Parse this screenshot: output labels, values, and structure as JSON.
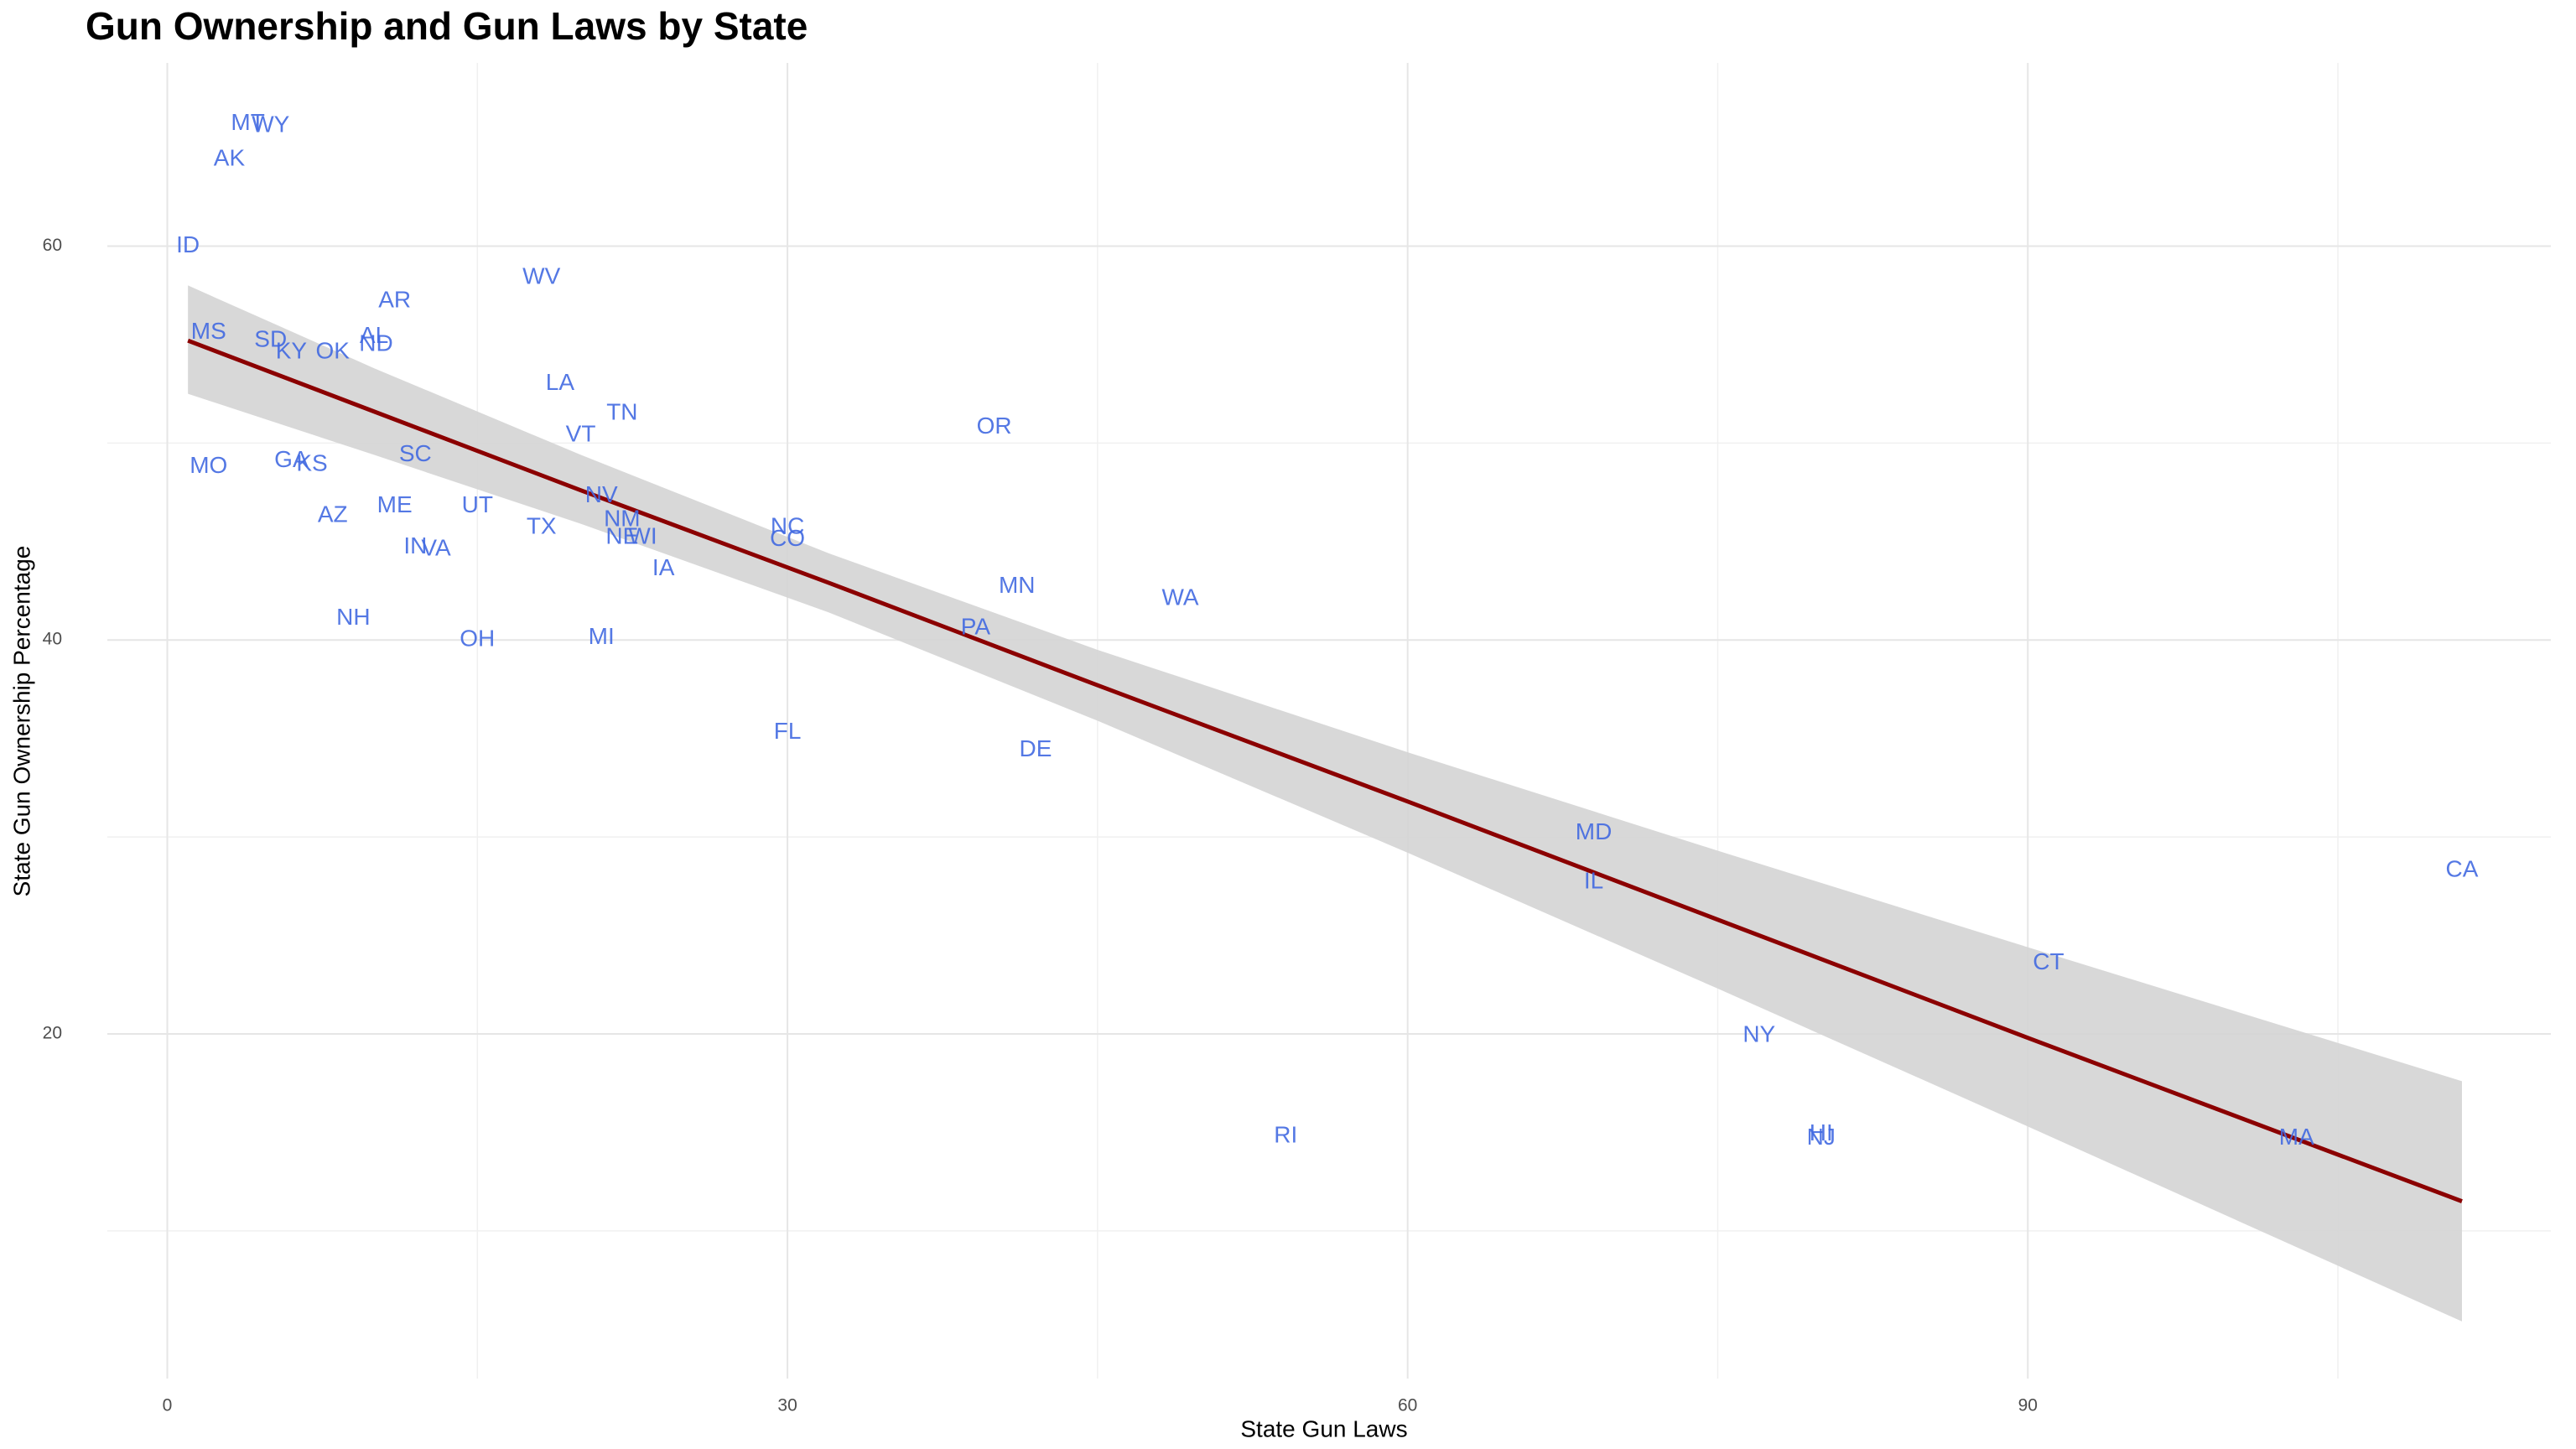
{
  "chart_data": {
    "type": "scatter",
    "title": "Gun Ownership and Gun Laws  by State",
    "x_label": "State Gun Laws",
    "y_label": "State Gun Ownership Percentage",
    "labels": [
      "MT",
      "WY",
      "AK",
      "ID",
      "WV",
      "AR",
      "MS",
      "AL",
      "ND",
      "SD",
      "KY",
      "OK",
      "LA",
      "TN",
      "VT",
      "OR",
      "SC",
      "GA",
      "KS",
      "MO",
      "NV",
      "UT",
      "ME",
      "AZ",
      "NM",
      "TX",
      "NC",
      "CO",
      "NE",
      "WI",
      "IN",
      "VA",
      "IA",
      "MN",
      "WA",
      "NH",
      "PA",
      "MI",
      "OH",
      "FL",
      "DE",
      "MD",
      "IL",
      "CA",
      "CT",
      "NY",
      "RI",
      "HI",
      "NJ",
      "MA"
    ],
    "x": [
      3.9,
      5.0,
      3.0,
      1.0,
      18.1,
      11.0,
      2.0,
      10.0,
      10.1,
      5.0,
      6.0,
      8.0,
      19.0,
      22.0,
      20.0,
      40.0,
      12.0,
      6.0,
      7.0,
      2.0,
      21.0,
      15.0,
      11.0,
      8.0,
      22.0,
      18.1,
      30.0,
      30.0,
      22.0,
      23.0,
      12.0,
      13.0,
      24.0,
      41.1,
      49.0,
      9.0,
      39.1,
      21.0,
      15.0,
      30.0,
      42.0,
      69.0,
      69.0,
      111.0,
      91.0,
      77.0,
      54.1,
      80.0,
      80.0,
      103.0
    ],
    "values": [
      66.2,
      66.1,
      64.4,
      60.0,
      58.4,
      57.2,
      55.6,
      55.4,
      55.0,
      55.2,
      54.6,
      54.6,
      53.0,
      51.5,
      50.4,
      50.8,
      49.4,
      49.1,
      48.9,
      48.8,
      47.3,
      46.8,
      46.8,
      46.3,
      46.1,
      45.7,
      45.7,
      45.1,
      45.2,
      45.2,
      44.7,
      44.6,
      43.6,
      42.7,
      42.1,
      41.1,
      40.6,
      40.1,
      40.0,
      35.3,
      34.4,
      30.2,
      27.7,
      28.3,
      23.6,
      19.9,
      14.8,
      14.9,
      14.7,
      14.7
    ],
    "color": "#4169e1",
    "fit": {
      "x": [
        1,
        10,
        20,
        32,
        45,
        60,
        75,
        90,
        111
      ],
      "y": [
        55.2,
        51.6,
        47.6,
        42.9,
        37.7,
        31.8,
        25.8,
        19.8,
        11.5
      ],
      "lower": [
        52.5,
        49.4,
        45.9,
        41.4,
        35.9,
        29.2,
        22.3,
        15.3,
        5.4
      ],
      "upper": [
        58.0,
        53.8,
        49.4,
        44.4,
        39.5,
        34.3,
        29.3,
        24.4,
        17.6
      ],
      "color": "#8b0000",
      "band_color": "#d4d4d4"
    },
    "xlim": [
      -2.9,
      115.3
    ],
    "ylim": [
      2.5,
      69.3
    ],
    "xticks": [
      0,
      30,
      60,
      90
    ],
    "yticks": [
      20,
      40,
      60
    ],
    "x_minor_grid": [
      15,
      45,
      75,
      105
    ],
    "y_minor_grid": [
      10,
      30,
      50
    ],
    "grid": true
  }
}
